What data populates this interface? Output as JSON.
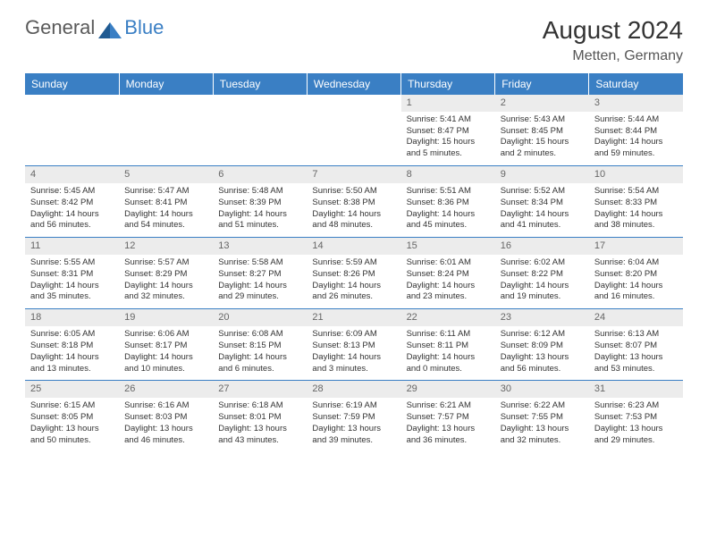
{
  "brand": {
    "part1": "General",
    "part2": "Blue"
  },
  "title": "August 2024",
  "location": "Metten, Germany",
  "colors": {
    "header_bg": "#3a7fc4",
    "header_text": "#ffffff",
    "day_bg": "#ececec",
    "border": "#3a7fc4",
    "text": "#333333",
    "background": "#ffffff"
  },
  "weekdays": [
    "Sunday",
    "Monday",
    "Tuesday",
    "Wednesday",
    "Thursday",
    "Friday",
    "Saturday"
  ],
  "weeks": [
    [
      null,
      null,
      null,
      null,
      {
        "n": "1",
        "sunrise": "5:41 AM",
        "sunset": "8:47 PM",
        "daylight": "15 hours and 5 minutes."
      },
      {
        "n": "2",
        "sunrise": "5:43 AM",
        "sunset": "8:45 PM",
        "daylight": "15 hours and 2 minutes."
      },
      {
        "n": "3",
        "sunrise": "5:44 AM",
        "sunset": "8:44 PM",
        "daylight": "14 hours and 59 minutes."
      }
    ],
    [
      {
        "n": "4",
        "sunrise": "5:45 AM",
        "sunset": "8:42 PM",
        "daylight": "14 hours and 56 minutes."
      },
      {
        "n": "5",
        "sunrise": "5:47 AM",
        "sunset": "8:41 PM",
        "daylight": "14 hours and 54 minutes."
      },
      {
        "n": "6",
        "sunrise": "5:48 AM",
        "sunset": "8:39 PM",
        "daylight": "14 hours and 51 minutes."
      },
      {
        "n": "7",
        "sunrise": "5:50 AM",
        "sunset": "8:38 PM",
        "daylight": "14 hours and 48 minutes."
      },
      {
        "n": "8",
        "sunrise": "5:51 AM",
        "sunset": "8:36 PM",
        "daylight": "14 hours and 45 minutes."
      },
      {
        "n": "9",
        "sunrise": "5:52 AM",
        "sunset": "8:34 PM",
        "daylight": "14 hours and 41 minutes."
      },
      {
        "n": "10",
        "sunrise": "5:54 AM",
        "sunset": "8:33 PM",
        "daylight": "14 hours and 38 minutes."
      }
    ],
    [
      {
        "n": "11",
        "sunrise": "5:55 AM",
        "sunset": "8:31 PM",
        "daylight": "14 hours and 35 minutes."
      },
      {
        "n": "12",
        "sunrise": "5:57 AM",
        "sunset": "8:29 PM",
        "daylight": "14 hours and 32 minutes."
      },
      {
        "n": "13",
        "sunrise": "5:58 AM",
        "sunset": "8:27 PM",
        "daylight": "14 hours and 29 minutes."
      },
      {
        "n": "14",
        "sunrise": "5:59 AM",
        "sunset": "8:26 PM",
        "daylight": "14 hours and 26 minutes."
      },
      {
        "n": "15",
        "sunrise": "6:01 AM",
        "sunset": "8:24 PM",
        "daylight": "14 hours and 23 minutes."
      },
      {
        "n": "16",
        "sunrise": "6:02 AM",
        "sunset": "8:22 PM",
        "daylight": "14 hours and 19 minutes."
      },
      {
        "n": "17",
        "sunrise": "6:04 AM",
        "sunset": "8:20 PM",
        "daylight": "14 hours and 16 minutes."
      }
    ],
    [
      {
        "n": "18",
        "sunrise": "6:05 AM",
        "sunset": "8:18 PM",
        "daylight": "14 hours and 13 minutes."
      },
      {
        "n": "19",
        "sunrise": "6:06 AM",
        "sunset": "8:17 PM",
        "daylight": "14 hours and 10 minutes."
      },
      {
        "n": "20",
        "sunrise": "6:08 AM",
        "sunset": "8:15 PM",
        "daylight": "14 hours and 6 minutes."
      },
      {
        "n": "21",
        "sunrise": "6:09 AM",
        "sunset": "8:13 PM",
        "daylight": "14 hours and 3 minutes."
      },
      {
        "n": "22",
        "sunrise": "6:11 AM",
        "sunset": "8:11 PM",
        "daylight": "14 hours and 0 minutes."
      },
      {
        "n": "23",
        "sunrise": "6:12 AM",
        "sunset": "8:09 PM",
        "daylight": "13 hours and 56 minutes."
      },
      {
        "n": "24",
        "sunrise": "6:13 AM",
        "sunset": "8:07 PM",
        "daylight": "13 hours and 53 minutes."
      }
    ],
    [
      {
        "n": "25",
        "sunrise": "6:15 AM",
        "sunset": "8:05 PM",
        "daylight": "13 hours and 50 minutes."
      },
      {
        "n": "26",
        "sunrise": "6:16 AM",
        "sunset": "8:03 PM",
        "daylight": "13 hours and 46 minutes."
      },
      {
        "n": "27",
        "sunrise": "6:18 AM",
        "sunset": "8:01 PM",
        "daylight": "13 hours and 43 minutes."
      },
      {
        "n": "28",
        "sunrise": "6:19 AM",
        "sunset": "7:59 PM",
        "daylight": "13 hours and 39 minutes."
      },
      {
        "n": "29",
        "sunrise": "6:21 AM",
        "sunset": "7:57 PM",
        "daylight": "13 hours and 36 minutes."
      },
      {
        "n": "30",
        "sunrise": "6:22 AM",
        "sunset": "7:55 PM",
        "daylight": "13 hours and 32 minutes."
      },
      {
        "n": "31",
        "sunrise": "6:23 AM",
        "sunset": "7:53 PM",
        "daylight": "13 hours and 29 minutes."
      }
    ]
  ],
  "labels": {
    "sunrise": "Sunrise: ",
    "sunset": "Sunset: ",
    "daylight": "Daylight: "
  }
}
